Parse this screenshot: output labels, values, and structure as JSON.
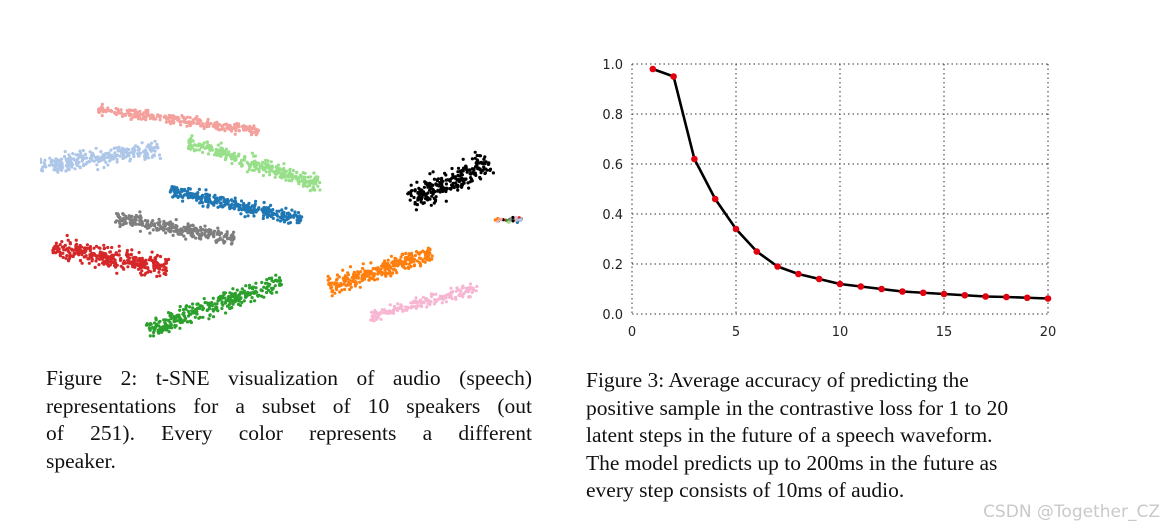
{
  "figures": {
    "left": {
      "caption_lines": [
        "Figure 2: t-SNE visualization of audio (speech)",
        "representations for a subset of 10 speakers (out",
        "of 251).  Every color represents a different",
        "speaker."
      ],
      "clusters": [
        {
          "color": "#f4a09c"
        },
        {
          "color": "#aec7e8"
        },
        {
          "color": "#98df8a"
        },
        {
          "color": "#1f77b4"
        },
        {
          "color": "#000000"
        },
        {
          "color": "#7f7f7f"
        },
        {
          "color": "#d62728"
        },
        {
          "color": "#ff7f0e"
        },
        {
          "color": "#2ca02c"
        },
        {
          "color": "#f7b6d2"
        }
      ]
    },
    "right": {
      "caption_lines": [
        "Figure 3:  Average accuracy of predicting the",
        "positive sample in the contrastive loss for 1 to 20",
        "latent steps in the future of a speech waveform.",
        "The model predicts up to 200ms in the future as",
        "every step consists of 10ms of audio."
      ]
    }
  },
  "chart_data": {
    "type": "line",
    "title": "",
    "xlabel": "",
    "ylabel": "",
    "xlim": [
      0,
      20
    ],
    "ylim": [
      0,
      1.0
    ],
    "x_ticks": [
      "0",
      "5",
      "10",
      "15",
      "20"
    ],
    "y_ticks": [
      "0.0",
      "0.2",
      "0.4",
      "0.6",
      "0.8",
      "1.0"
    ],
    "grid": true,
    "grid_style": "dotted",
    "line_color": "#000000",
    "marker_color": "#e3000f",
    "series": [
      {
        "x": [
          1,
          2,
          3,
          4,
          5,
          6,
          7,
          8,
          9,
          10,
          11,
          12,
          13,
          14,
          15,
          16,
          17,
          18,
          19,
          20
        ],
        "values": [
          0.98,
          0.95,
          0.62,
          0.46,
          0.34,
          0.25,
          0.19,
          0.16,
          0.14,
          0.12,
          0.11,
          0.1,
          0.09,
          0.085,
          0.08,
          0.075,
          0.07,
          0.068,
          0.065,
          0.062
        ]
      }
    ]
  },
  "watermark": "CSDN @Together_CZ"
}
